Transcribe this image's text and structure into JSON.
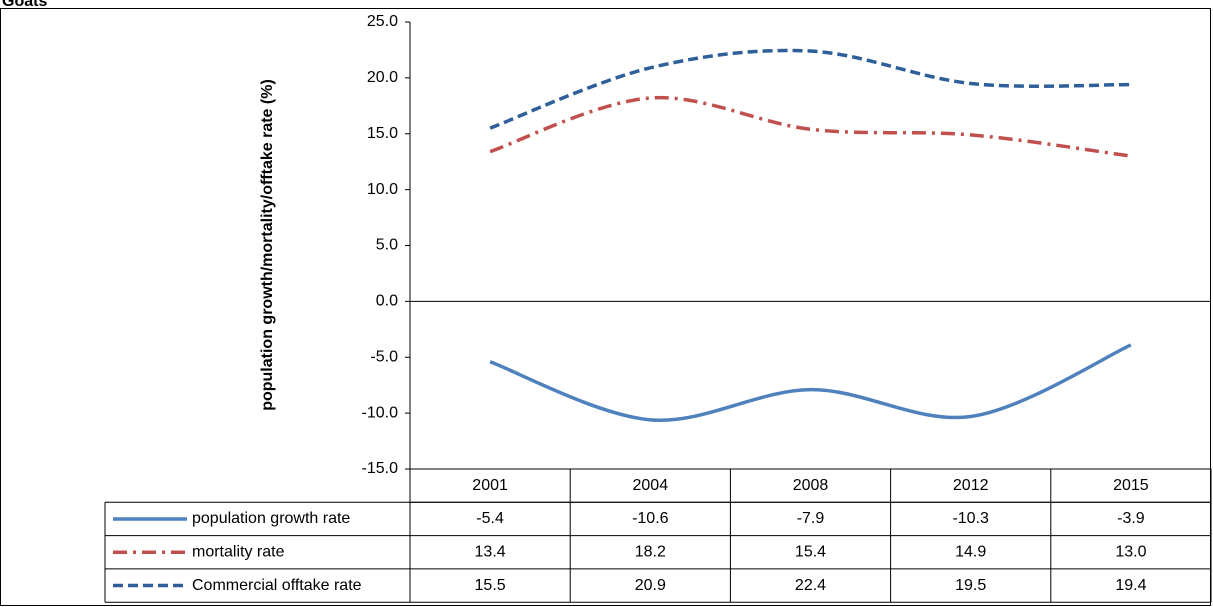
{
  "chart_data": {
    "type": "line",
    "title": "Goats",
    "y_label": "population growth/mortality/offtake rate (%)",
    "categories": [
      "2001",
      "2004",
      "2008",
      "2012",
      "2015"
    ],
    "series": [
      {
        "name": "population growth rate",
        "color": "#4f81bd",
        "dash": "solid",
        "values": [
          -5.4,
          -10.6,
          -7.9,
          -10.3,
          -3.9
        ]
      },
      {
        "name": "mortality rate",
        "color": "#c0504d",
        "dash": "dashdot",
        "values": [
          13.4,
          18.2,
          15.4,
          14.9,
          13.0
        ],
        "value_labels": [
          "13.4",
          "18.2",
          "15.4",
          "14.9",
          "13.0"
        ]
      },
      {
        "name": "Commercial offtake rate",
        "color": "#2f5f98",
        "dash": "dashed",
        "values": [
          15.5,
          20.9,
          22.4,
          19.5,
          19.4
        ]
      }
    ],
    "ylim": [
      -15,
      25
    ],
    "yticks": [
      {
        "value": -15,
        "label": "-15.0"
      },
      {
        "value": -10,
        "label": "-10.0"
      },
      {
        "value": -5,
        "label": "-5.0"
      },
      {
        "value": 0,
        "label": "0.0"
      },
      {
        "value": 5,
        "label": "5.0"
      },
      {
        "value": 10,
        "label": "10.0"
      },
      {
        "value": 15,
        "label": "15.0"
      },
      {
        "value": 20,
        "label": "20.0"
      },
      {
        "value": 25,
        "label": "25.0"
      }
    ],
    "grid": false,
    "smooth": true,
    "data_table": true
  }
}
